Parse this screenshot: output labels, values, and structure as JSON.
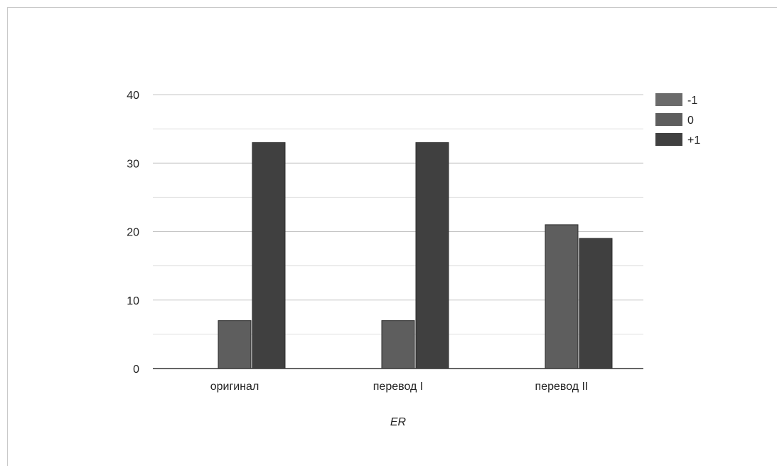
{
  "chart_data": {
    "type": "bar",
    "title": "",
    "xlabel": "ER",
    "ylabel": "",
    "categories": [
      "оригинал",
      "перевод I",
      "перевод II"
    ],
    "series": [
      {
        "name": "-1",
        "values": [
          0,
          0,
          0
        ],
        "color": "#6b6b6b"
      },
      {
        "name": "0",
        "values": [
          7,
          7,
          21
        ],
        "color": "#5e5e5e"
      },
      {
        "name": "+1",
        "values": [
          33,
          33,
          19
        ],
        "color": "#404040"
      }
    ],
    "ylim": [
      0,
      40
    ],
    "yticks": [
      0,
      10,
      20,
      30,
      40
    ],
    "grid": true,
    "legend_position": "right"
  }
}
